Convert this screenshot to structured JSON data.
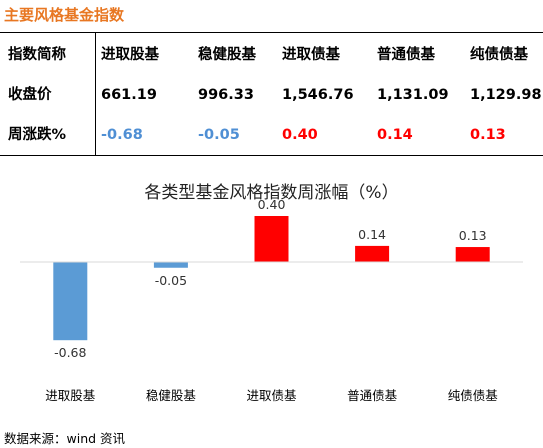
{
  "heading": "主要风格基金指数",
  "table": {
    "header_label": "指数简称",
    "columns": [
      "进取股基",
      "稳健股基",
      "进取债基",
      "普通债基",
      "纯债债基"
    ],
    "rows": [
      {
        "label": "收盘价",
        "values": [
          "661.19",
          "996.33",
          "1,546.76",
          "1,131.09",
          "1,129.98"
        ]
      },
      {
        "label": "周涨跌%",
        "values": [
          "-0.68",
          "-0.05",
          "0.40",
          "0.14",
          "0.13"
        ]
      }
    ]
  },
  "chart_data": {
    "type": "bar",
    "title": "各类型基金风格指数周涨幅（%）",
    "categories": [
      "进取股基",
      "稳健股基",
      "进取债基",
      "普通债基",
      "纯债债基"
    ],
    "values": [
      -0.68,
      -0.05,
      0.4,
      0.14,
      0.13
    ],
    "data_labels": [
      "-0.68",
      "-0.05",
      "0.40",
      "0.14",
      "0.13"
    ],
    "colors": {
      "negative": "#5b9bd5",
      "positive": "#ff0000",
      "axis": "#d9d9d9"
    },
    "ylim": [
      -0.68,
      0.4
    ],
    "grid": false,
    "legend": "none"
  },
  "source": "数据来源：wind 资讯"
}
